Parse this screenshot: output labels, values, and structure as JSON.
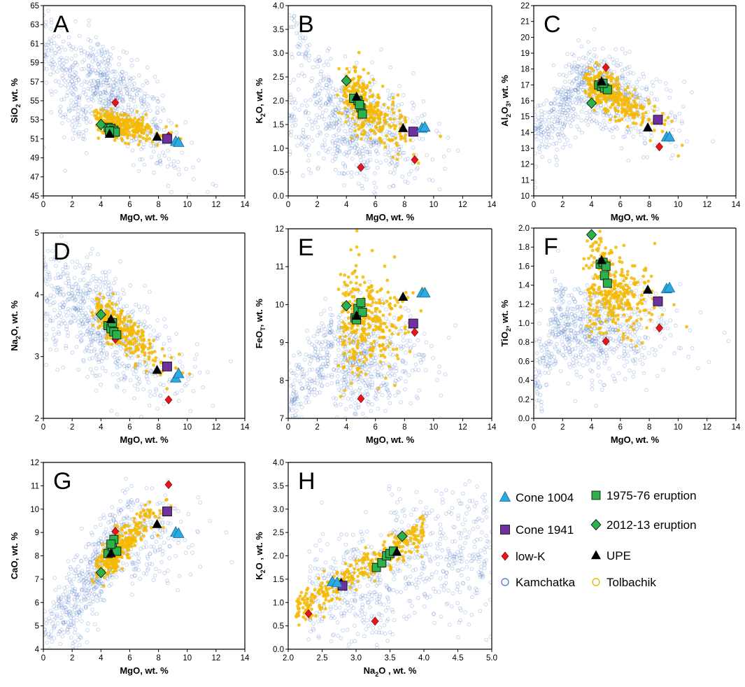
{
  "colors": {
    "kamchatka": "#4472c4",
    "tolbachik": "#f5b800",
    "cone1004": "#29aae1",
    "eruption1975": "#2bb24c",
    "cone1941": "#7030a0",
    "eruption2012": "#2bb24c",
    "lowk": "#e8141b",
    "upe": "#000000"
  },
  "legend": {
    "cone1004": "Cone 1004",
    "eruption1975": "1975-76 eruption",
    "cone1941": "Cone 1941",
    "eruption2012": "2012-13 eruption",
    "lowk": "low-K",
    "upe": "UPE",
    "kamchatka": "Kamchatka",
    "tolbachik": "Tolbachik"
  },
  "chart_data": [
    {
      "id": "A",
      "type": "scatter",
      "letter": "A",
      "xlabel": "MgO, wt. %",
      "ylabel": [
        "SiO",
        "2",
        " wt. %"
      ],
      "xlim": [
        0,
        14
      ],
      "xticks": [
        0,
        2,
        4,
        6,
        8,
        10,
        12,
        14
      ],
      "ylim": [
        45,
        65
      ],
      "yticks": [
        45,
        47,
        49,
        51,
        53,
        55,
        57,
        59,
        61,
        63,
        65
      ],
      "series": [
        {
          "name": "Cone 1004",
          "points": [
            [
              9.2,
              50.7
            ],
            [
              9.4,
              50.6
            ]
          ]
        },
        {
          "name": "Cone 1941",
          "points": [
            [
              8.6,
              51.0
            ]
          ]
        },
        {
          "name": "low-K",
          "points": [
            [
              5.0,
              54.8
            ],
            [
              8.7,
              51.3
            ]
          ]
        },
        {
          "name": "UPE",
          "points": [
            [
              4.6,
              51.5
            ],
            [
              7.9,
              51.2
            ]
          ]
        },
        {
          "name": "1975-76 eruption",
          "points": [
            [
              4.5,
              52.2
            ],
            [
              4.7,
              52.1
            ],
            [
              4.9,
              51.9
            ],
            [
              5.0,
              51.7
            ],
            [
              4.6,
              51.8
            ]
          ]
        },
        {
          "name": "2012-13 eruption",
          "points": [
            [
              4.0,
              52.5
            ]
          ]
        }
      ]
    },
    {
      "id": "B",
      "type": "scatter",
      "letter": "B",
      "xlabel": "MgO, wt. %",
      "ylabel": [
        "K",
        "2",
        "O, wt. %"
      ],
      "xlim": [
        0,
        14
      ],
      "xticks": [
        0,
        2,
        4,
        6,
        8,
        10,
        12,
        14
      ],
      "ylim": [
        0,
        4
      ],
      "yticks": [
        0.0,
        0.5,
        1.0,
        1.5,
        2.0,
        2.5,
        3.0,
        3.5,
        4.0
      ],
      "series": [
        {
          "name": "Cone 1004",
          "points": [
            [
              9.2,
              1.42
            ],
            [
              9.4,
              1.44
            ]
          ]
        },
        {
          "name": "Cone 1941",
          "points": [
            [
              8.6,
              1.35
            ]
          ]
        },
        {
          "name": "low-K",
          "points": [
            [
              5.0,
              0.6
            ],
            [
              8.7,
              0.76
            ]
          ]
        },
        {
          "name": "UPE",
          "points": [
            [
              4.7,
              2.08
            ],
            [
              7.9,
              1.42
            ]
          ]
        },
        {
          "name": "1975-76 eruption",
          "points": [
            [
              4.5,
              2.05
            ],
            [
              4.8,
              2.0
            ],
            [
              5.0,
              1.85
            ],
            [
              5.1,
              1.72
            ],
            [
              4.9,
              1.92
            ]
          ]
        },
        {
          "name": "2012-13 eruption",
          "points": [
            [
              4.0,
              2.42
            ]
          ]
        }
      ]
    },
    {
      "id": "C",
      "type": "scatter",
      "letter": "C",
      "xlabel": "MgO, wt. %",
      "ylabel": [
        "Al",
        "2",
        "O",
        "3",
        ", wt. %"
      ],
      "xlim": [
        0,
        14
      ],
      "xticks": [
        0,
        2,
        4,
        6,
        8,
        10,
        12,
        14
      ],
      "ylim": [
        10,
        22
      ],
      "yticks": [
        10,
        11,
        12,
        13,
        14,
        15,
        16,
        17,
        18,
        19,
        20,
        21,
        22
      ],
      "series": [
        {
          "name": "Cone 1004",
          "points": [
            [
              9.2,
              13.7
            ],
            [
              9.4,
              13.7
            ]
          ]
        },
        {
          "name": "Cone 1941",
          "points": [
            [
              8.6,
              14.8
            ]
          ]
        },
        {
          "name": "low-K",
          "points": [
            [
              5.0,
              18.1
            ],
            [
              8.7,
              13.1
            ]
          ]
        },
        {
          "name": "UPE",
          "points": [
            [
              4.7,
              17.2
            ],
            [
              7.9,
              14.3
            ]
          ]
        },
        {
          "name": "1975-76 eruption",
          "points": [
            [
              4.5,
              17.0
            ],
            [
              4.7,
              16.9
            ],
            [
              4.9,
              16.8
            ],
            [
              5.1,
              16.7
            ],
            [
              4.8,
              17.1
            ]
          ]
        },
        {
          "name": "2012-13 eruption",
          "points": [
            [
              4.0,
              15.85
            ]
          ]
        }
      ]
    },
    {
      "id": "D",
      "type": "scatter",
      "letter": "D",
      "xlabel": "MgO, wt. %",
      "ylabel": [
        "Na",
        "2",
        "O, wt. %"
      ],
      "xlim": [
        0,
        14
      ],
      "xticks": [
        0,
        2,
        4,
        6,
        8,
        10,
        12,
        14
      ],
      "ylim": [
        2,
        5
      ],
      "yticks": [
        2,
        3,
        4,
        5
      ],
      "series": [
        {
          "name": "Cone 1004",
          "points": [
            [
              9.2,
              2.65
            ],
            [
              9.4,
              2.72
            ]
          ]
        },
        {
          "name": "Cone 1941",
          "points": [
            [
              8.6,
              2.84
            ]
          ]
        },
        {
          "name": "low-K",
          "points": [
            [
              5.0,
              3.28
            ],
            [
              8.7,
              2.3
            ]
          ]
        },
        {
          "name": "UPE",
          "points": [
            [
              4.7,
              3.6
            ],
            [
              7.9,
              2.78
            ]
          ]
        },
        {
          "name": "1975-76 eruption",
          "points": [
            [
              4.5,
              3.5
            ],
            [
              4.7,
              3.45
            ],
            [
              4.9,
              3.4
            ],
            [
              5.1,
              3.35
            ],
            [
              4.8,
              3.55
            ]
          ]
        },
        {
          "name": "2012-13 eruption",
          "points": [
            [
              4.0,
              3.68
            ]
          ]
        }
      ]
    },
    {
      "id": "E",
      "type": "scatter",
      "letter": "E",
      "xlabel": "MgO, wt. %",
      "ylabel": [
        "FeO",
        "T",
        ", wt. %"
      ],
      "xlim": [
        0,
        14
      ],
      "xticks": [
        0,
        2,
        4,
        6,
        8,
        10,
        12,
        14
      ],
      "ylim": [
        7,
        12
      ],
      "yticks": [
        7,
        8,
        9,
        10,
        11,
        12
      ],
      "series": [
        {
          "name": "Cone 1004",
          "points": [
            [
              9.2,
              10.3
            ],
            [
              9.4,
              10.3
            ]
          ]
        },
        {
          "name": "Cone 1941",
          "points": [
            [
              8.6,
              9.5
            ]
          ]
        },
        {
          "name": "low-K",
          "points": [
            [
              5.0,
              7.52
            ],
            [
              8.7,
              9.27
            ]
          ]
        },
        {
          "name": "UPE",
          "points": [
            [
              4.7,
              9.7
            ],
            [
              7.9,
              10.2
            ]
          ]
        },
        {
          "name": "1975-76 eruption",
          "points": [
            [
              4.6,
              9.65
            ],
            [
              4.8,
              9.9
            ],
            [
              5.0,
              10.05
            ],
            [
              5.1,
              9.8
            ],
            [
              4.7,
              9.6
            ]
          ]
        },
        {
          "name": "2012-13 eruption",
          "points": [
            [
              4.0,
              9.97
            ]
          ]
        }
      ]
    },
    {
      "id": "F",
      "type": "scatter",
      "letter": "F",
      "xlabel": "MgO, wt. %",
      "ylabel": [
        "TiO",
        "2",
        ", wt. %"
      ],
      "xlim": [
        0,
        14
      ],
      "xticks": [
        0,
        2,
        4,
        6,
        8,
        10,
        12,
        14
      ],
      "ylim": [
        0,
        2
      ],
      "yticks": [
        0.0,
        0.2,
        0.4,
        0.6,
        0.8,
        1.0,
        1.2,
        1.4,
        1.6,
        1.8,
        2.0
      ],
      "series": [
        {
          "name": "Cone 1004",
          "points": [
            [
              9.2,
              1.36
            ],
            [
              9.4,
              1.37
            ]
          ]
        },
        {
          "name": "Cone 1941",
          "points": [
            [
              8.6,
              1.23
            ]
          ]
        },
        {
          "name": "low-K",
          "points": [
            [
              5.0,
              0.81
            ],
            [
              8.7,
              0.95
            ]
          ]
        },
        {
          "name": "UPE",
          "points": [
            [
              4.7,
              1.66
            ],
            [
              7.9,
              1.35
            ]
          ]
        },
        {
          "name": "1975-76 eruption",
          "points": [
            [
              4.6,
              1.62
            ],
            [
              4.8,
              1.64
            ],
            [
              4.9,
              1.5
            ],
            [
              5.1,
              1.42
            ],
            [
              5.0,
              1.6
            ]
          ]
        },
        {
          "name": "2012-13 eruption",
          "points": [
            [
              4.0,
              1.93
            ]
          ]
        }
      ]
    },
    {
      "id": "G",
      "type": "scatter",
      "letter": "G",
      "xlabel": "MgO, wt. %",
      "ylabel": [
        "CaO, wt. %"
      ],
      "xlim": [
        0,
        14
      ],
      "xticks": [
        0,
        2,
        4,
        6,
        8,
        10,
        12,
        14
      ],
      "ylim": [
        4,
        12
      ],
      "yticks": [
        4,
        5,
        6,
        7,
        8,
        9,
        10,
        11,
        12
      ],
      "series": [
        {
          "name": "Cone 1004",
          "points": [
            [
              9.2,
              9.0
            ],
            [
              9.4,
              8.95
            ]
          ]
        },
        {
          "name": "Cone 1941",
          "points": [
            [
              8.6,
              9.9
            ]
          ]
        },
        {
          "name": "low-K",
          "points": [
            [
              5.0,
              9.05
            ],
            [
              8.7,
              11.05
            ]
          ]
        },
        {
          "name": "UPE",
          "points": [
            [
              4.7,
              8.1
            ],
            [
              7.9,
              9.35
            ]
          ]
        },
        {
          "name": "1975-76 eruption",
          "points": [
            [
              4.5,
              8.1
            ],
            [
              4.8,
              8.4
            ],
            [
              4.9,
              8.7
            ],
            [
              5.1,
              8.2
            ],
            [
              4.7,
              8.5
            ]
          ]
        },
        {
          "name": "2012-13 eruption",
          "points": [
            [
              4.0,
              7.28
            ]
          ]
        }
      ]
    },
    {
      "id": "H",
      "type": "scatter",
      "letter": "H",
      "xlabel": "Na₂O , wt. %",
      "ylabel": [
        "K",
        "2",
        "O , wt. %"
      ],
      "xlim": [
        2,
        5
      ],
      "xticks": [
        2.0,
        2.5,
        3.0,
        3.5,
        4.0,
        4.5,
        5.0
      ],
      "ylim": [
        0,
        4
      ],
      "yticks": [
        0.0,
        0.5,
        1.0,
        1.5,
        2.0,
        2.5,
        3.0,
        3.5,
        4.0
      ],
      "series": [
        {
          "name": "Cone 1004",
          "points": [
            [
              2.65,
              1.44
            ],
            [
              2.72,
              1.42
            ]
          ]
        },
        {
          "name": "Cone 1941",
          "points": [
            [
              2.8,
              1.36
            ]
          ]
        },
        {
          "name": "low-K",
          "points": [
            [
              3.28,
              0.6
            ],
            [
              2.3,
              0.76
            ]
          ]
        },
        {
          "name": "UPE",
          "points": [
            [
              3.6,
              2.08
            ],
            [
              2.78,
              1.42
            ]
          ]
        },
        {
          "name": "1975-76 eruption",
          "points": [
            [
              3.3,
              1.75
            ],
            [
              3.38,
              1.85
            ],
            [
              3.45,
              2.0
            ],
            [
              3.5,
              2.05
            ],
            [
              3.55,
              2.1
            ]
          ]
        },
        {
          "name": "2012-13 eruption",
          "points": [
            [
              3.68,
              2.42
            ]
          ]
        }
      ]
    }
  ]
}
